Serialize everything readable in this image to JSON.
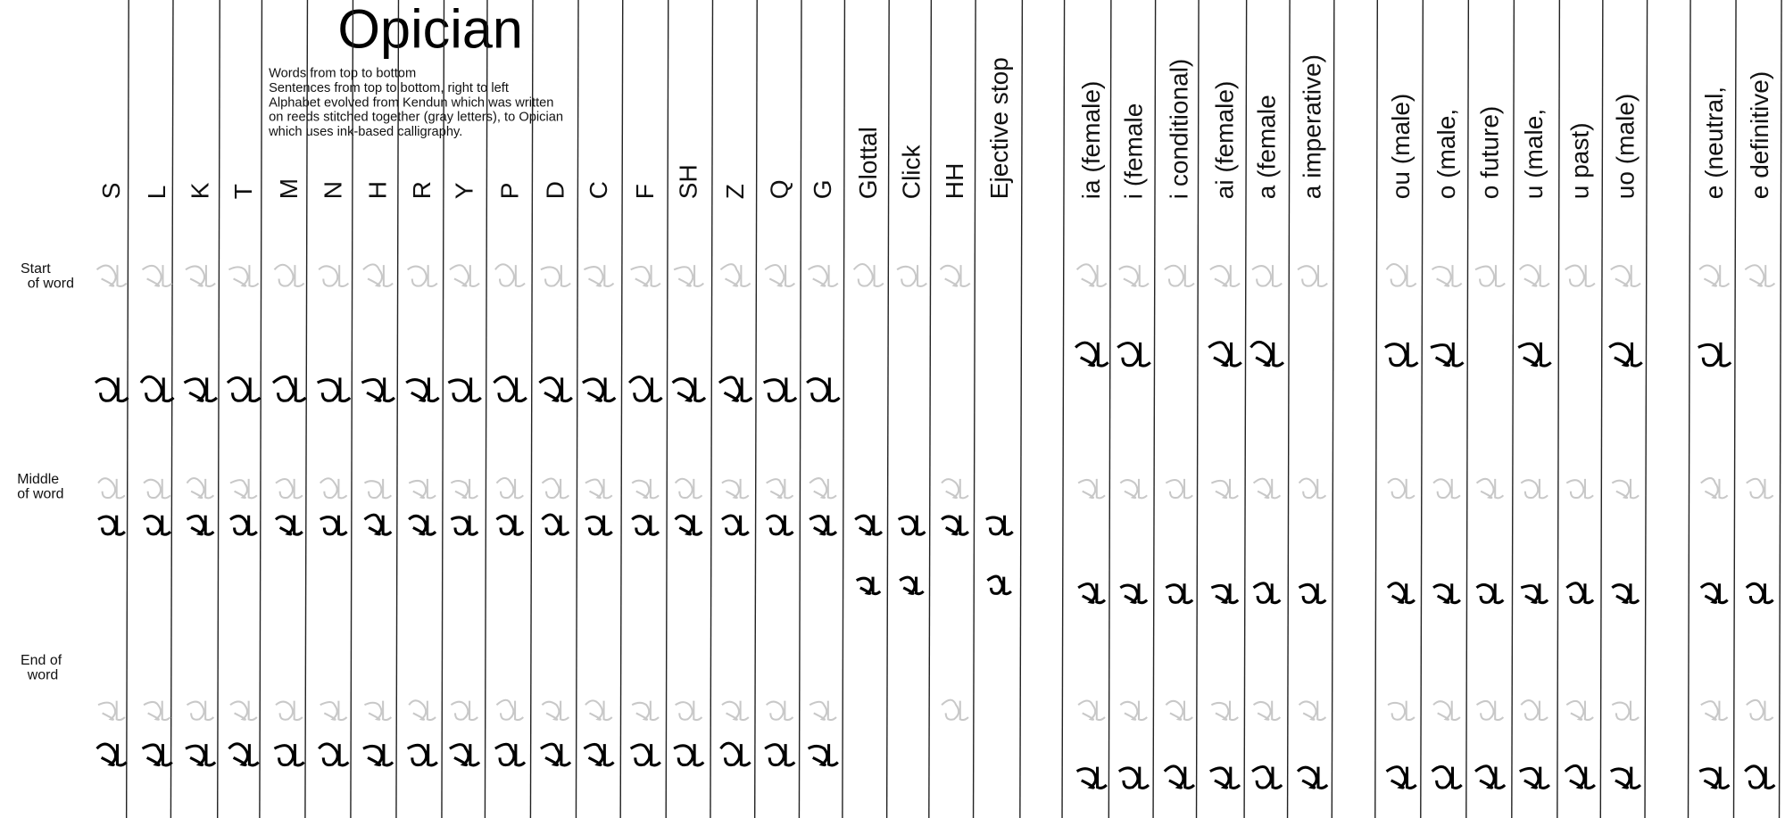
{
  "title": "Opician",
  "description": [
    "Words from top to bottom",
    "Sentences from top to bottom, right to left",
    "Alphabet evolved from Kendun which was written",
    "on reeds stitched together (gray letters), to Opician",
    "which uses ink-based calligraphy."
  ],
  "row_labels": [
    [
      "Start",
      "of word"
    ],
    [
      "Middle",
      "of word"
    ],
    [
      "End of",
      "word"
    ]
  ],
  "columns": [
    "S",
    "L",
    "K",
    "T",
    "M",
    "N",
    "H",
    "R",
    "Y",
    "P",
    "D",
    "C",
    "F",
    "SH",
    "Z",
    "Q",
    "G",
    "Glottal",
    "Click",
    "HH",
    "Ejective stop",
    "ia (female)",
    "i (female",
    "i conditional)",
    "ai (female)",
    "a (female",
    "a imperative)",
    "ou (male)",
    "o (male,",
    "o future)",
    "u (male,",
    "u past)",
    "uo (male)",
    "e (neutral,",
    "e definitive)"
  ]
}
